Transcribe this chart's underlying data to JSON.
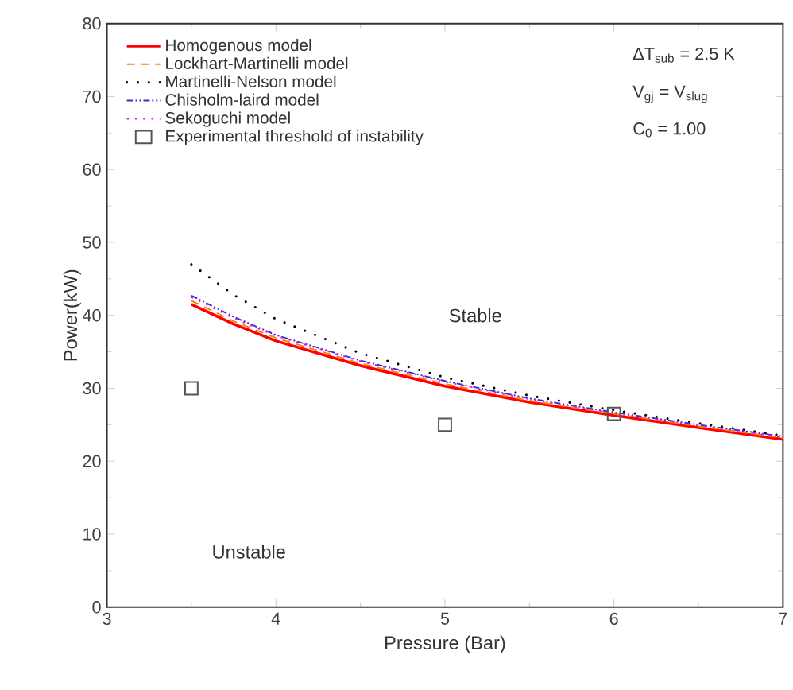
{
  "chart_data": {
    "type": "line",
    "xlabel": "Pressure (Bar)",
    "ylabel": "Power(kW)",
    "xlim": [
      3,
      7
    ],
    "ylim": [
      0,
      80
    ],
    "xticks": [
      3,
      4,
      5,
      6,
      7
    ],
    "yticks": [
      0,
      10,
      20,
      30,
      40,
      50,
      60,
      70,
      80
    ],
    "grid": false,
    "legend": "top left",
    "marker": "none",
    "annotations": [
      "ΔT$_{sub}$ = 2.5 K",
      "V$_{gj}$ = V$_{slug}$",
      "C$_{0}$ = 1.00",
      "Stable",
      "Unstable"
    ],
    "series": [
      {
        "name": "Homogenous model",
        "color": "#ff0000",
        "line_style": "solid",
        "x": [
          3.5,
          3.75,
          4,
          4.5,
          5,
          5.5,
          6,
          6.5,
          7
        ],
        "values": [
          41.5,
          38.8,
          36.5,
          33.1,
          30.3,
          28.1,
          26.3,
          24.6,
          23.0
        ]
      },
      {
        "name": "Lockhart-Martinelli model",
        "color": "#ff8000",
        "line_style": "dashed",
        "x": [
          3.5,
          3.75,
          4,
          4.5,
          5,
          5.5,
          6,
          6.5,
          7
        ],
        "values": [
          42.0,
          39.2,
          36.9,
          33.4,
          30.6,
          28.3,
          26.5,
          24.8,
          23.2
        ]
      },
      {
        "name": "Martinelli-Nelson model",
        "color": "#000000",
        "line_style": "dotted",
        "x": [
          3.5,
          3.75,
          4,
          4.5,
          5,
          5.5,
          6,
          6.5,
          7
        ],
        "values": [
          47.0,
          42.8,
          39.5,
          34.8,
          31.5,
          29.0,
          27.0,
          25.2,
          23.5
        ]
      },
      {
        "name": "Chisholm-laird model",
        "color": "#3333cc",
        "line_style": "dashdotdotted",
        "x": [
          3.5,
          3.75,
          4,
          4.5,
          5,
          5.5,
          6,
          6.5,
          7
        ],
        "values": [
          42.7,
          39.8,
          37.3,
          33.8,
          31.0,
          28.6,
          26.7,
          25.0,
          23.4
        ]
      },
      {
        "name": "Sekoguchi model",
        "color": "#ff00ff",
        "line_style": "dotted",
        "x": [
          3.5,
          3.75,
          4,
          4.5,
          5,
          5.5,
          6,
          6.5,
          7
        ],
        "values": [
          42.5,
          39.6,
          37.2,
          33.7,
          30.9,
          28.5,
          26.6,
          24.9,
          23.3
        ]
      },
      {
        "name": "Experimental threshold of instability",
        "type": "scatter",
        "marker": "square",
        "color": "#555555",
        "x": [
          3.5,
          5,
          6
        ],
        "values": [
          30,
          25,
          26.5
        ]
      }
    ]
  }
}
